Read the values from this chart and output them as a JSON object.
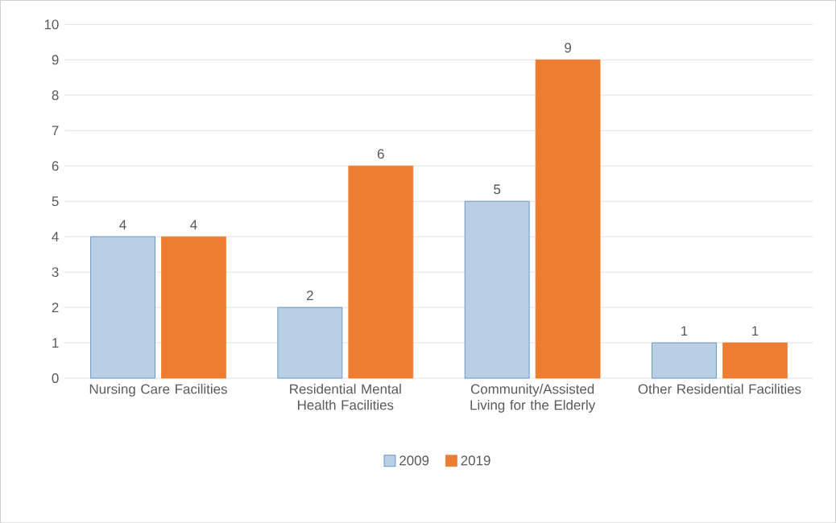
{
  "chart_data": {
    "type": "bar",
    "categories": [
      "Nursing Care Facilities",
      "Residential Mental Health Facilities",
      "Community/Assisted Living for the Elderly",
      "Other Residential Facilities"
    ],
    "series": [
      {
        "name": "2009",
        "color": "#4f86b8",
        "values": [
          4,
          2,
          5,
          1
        ]
      },
      {
        "name": "2019",
        "color": "#ed7d31",
        "values": [
          4,
          6,
          9,
          1
        ]
      }
    ],
    "ylim": [
      0,
      10
    ],
    "yticks": [
      0,
      1,
      2,
      3,
      4,
      5,
      6,
      7,
      8,
      9,
      10
    ],
    "grid": "y",
    "legend": "bottom",
    "data_labels": true
  }
}
